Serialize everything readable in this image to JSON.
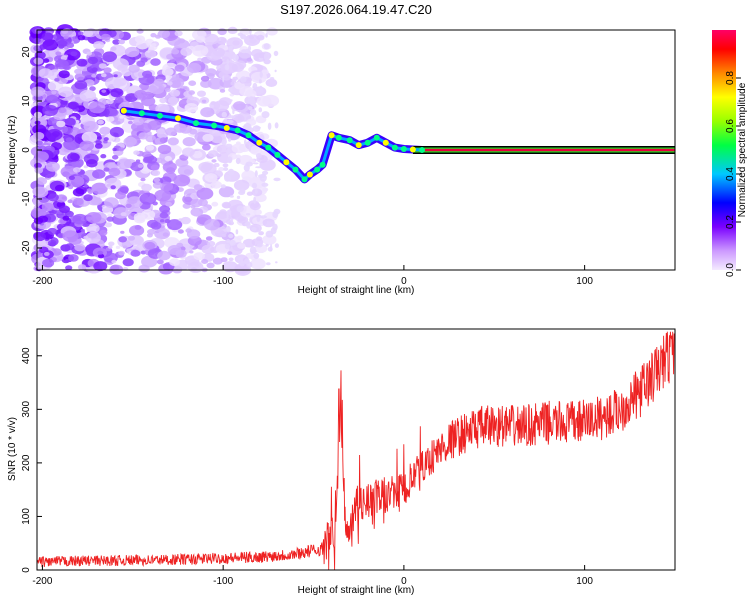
{
  "title": "S197.2026.064.19.47.C20",
  "chart_data": [
    {
      "type": "heatmap",
      "xlabel": "Height of straight line (km)",
      "ylabel": "Frequency (Hz)",
      "xlim": [
        -203,
        150
      ],
      "ylim": [
        -24.5,
        24.5
      ],
      "xticks": [
        -200,
        -100,
        0,
        100
      ],
      "yticks": [
        -20,
        -10,
        0,
        10,
        20
      ],
      "colorbar": {
        "label": "Normalized spectral amplitude",
        "range": [
          0,
          1
        ],
        "ticks": [
          "0.0",
          "0.2",
          "0.4",
          "0.6",
          "0.8"
        ]
      },
      "ridge": {
        "x": [
          -155,
          -145,
          -135,
          -125,
          -115,
          -105,
          -98,
          -92,
          -86,
          -80,
          -75,
          -70,
          -65,
          -60,
          -55,
          -52,
          -48,
          -45,
          -40,
          -36,
          -30,
          -25,
          -20,
          -15,
          -10,
          -5,
          0,
          5,
          10,
          150
        ],
        "y": [
          8,
          7.5,
          7,
          6.5,
          5.5,
          5,
          4.5,
          4,
          3,
          1.5,
          0.5,
          -1,
          -2.5,
          -4,
          -6,
          -5,
          -4,
          -3,
          3,
          2.5,
          2,
          1,
          1.5,
          2.5,
          1.5,
          0.5,
          0.2,
          0.1,
          0,
          0
        ]
      },
      "constant_line_hz": 0,
      "constant_from_km": 5
    },
    {
      "type": "line",
      "xlabel": "Height of straight line (km)",
      "ylabel": "SNR (10 * v/v)",
      "xlim": [
        -203,
        150
      ],
      "ylim": [
        0,
        450
      ],
      "xticks": [
        -200,
        -100,
        0,
        100
      ],
      "yticks": [
        0,
        100,
        200,
        300,
        400
      ],
      "color": "#ee2222",
      "anchors": {
        "x": [
          -203,
          -180,
          -150,
          -120,
          -100,
          -80,
          -60,
          -45,
          -38,
          -35,
          -32,
          -28,
          -20,
          -10,
          0,
          5,
          10,
          15,
          20,
          25,
          30,
          40,
          50,
          60,
          70,
          80,
          90,
          100,
          110,
          120,
          130,
          140,
          150
        ],
        "y": [
          15,
          17,
          18,
          20,
          22,
          24,
          30,
          40,
          80,
          300,
          60,
          120,
          130,
          140,
          150,
          170,
          190,
          210,
          225,
          240,
          250,
          265,
          270,
          268,
          270,
          275,
          275,
          278,
          285,
          300,
          330,
          370,
          420
        ]
      },
      "spike": {
        "x": -36,
        "y": 338
      }
    }
  ]
}
